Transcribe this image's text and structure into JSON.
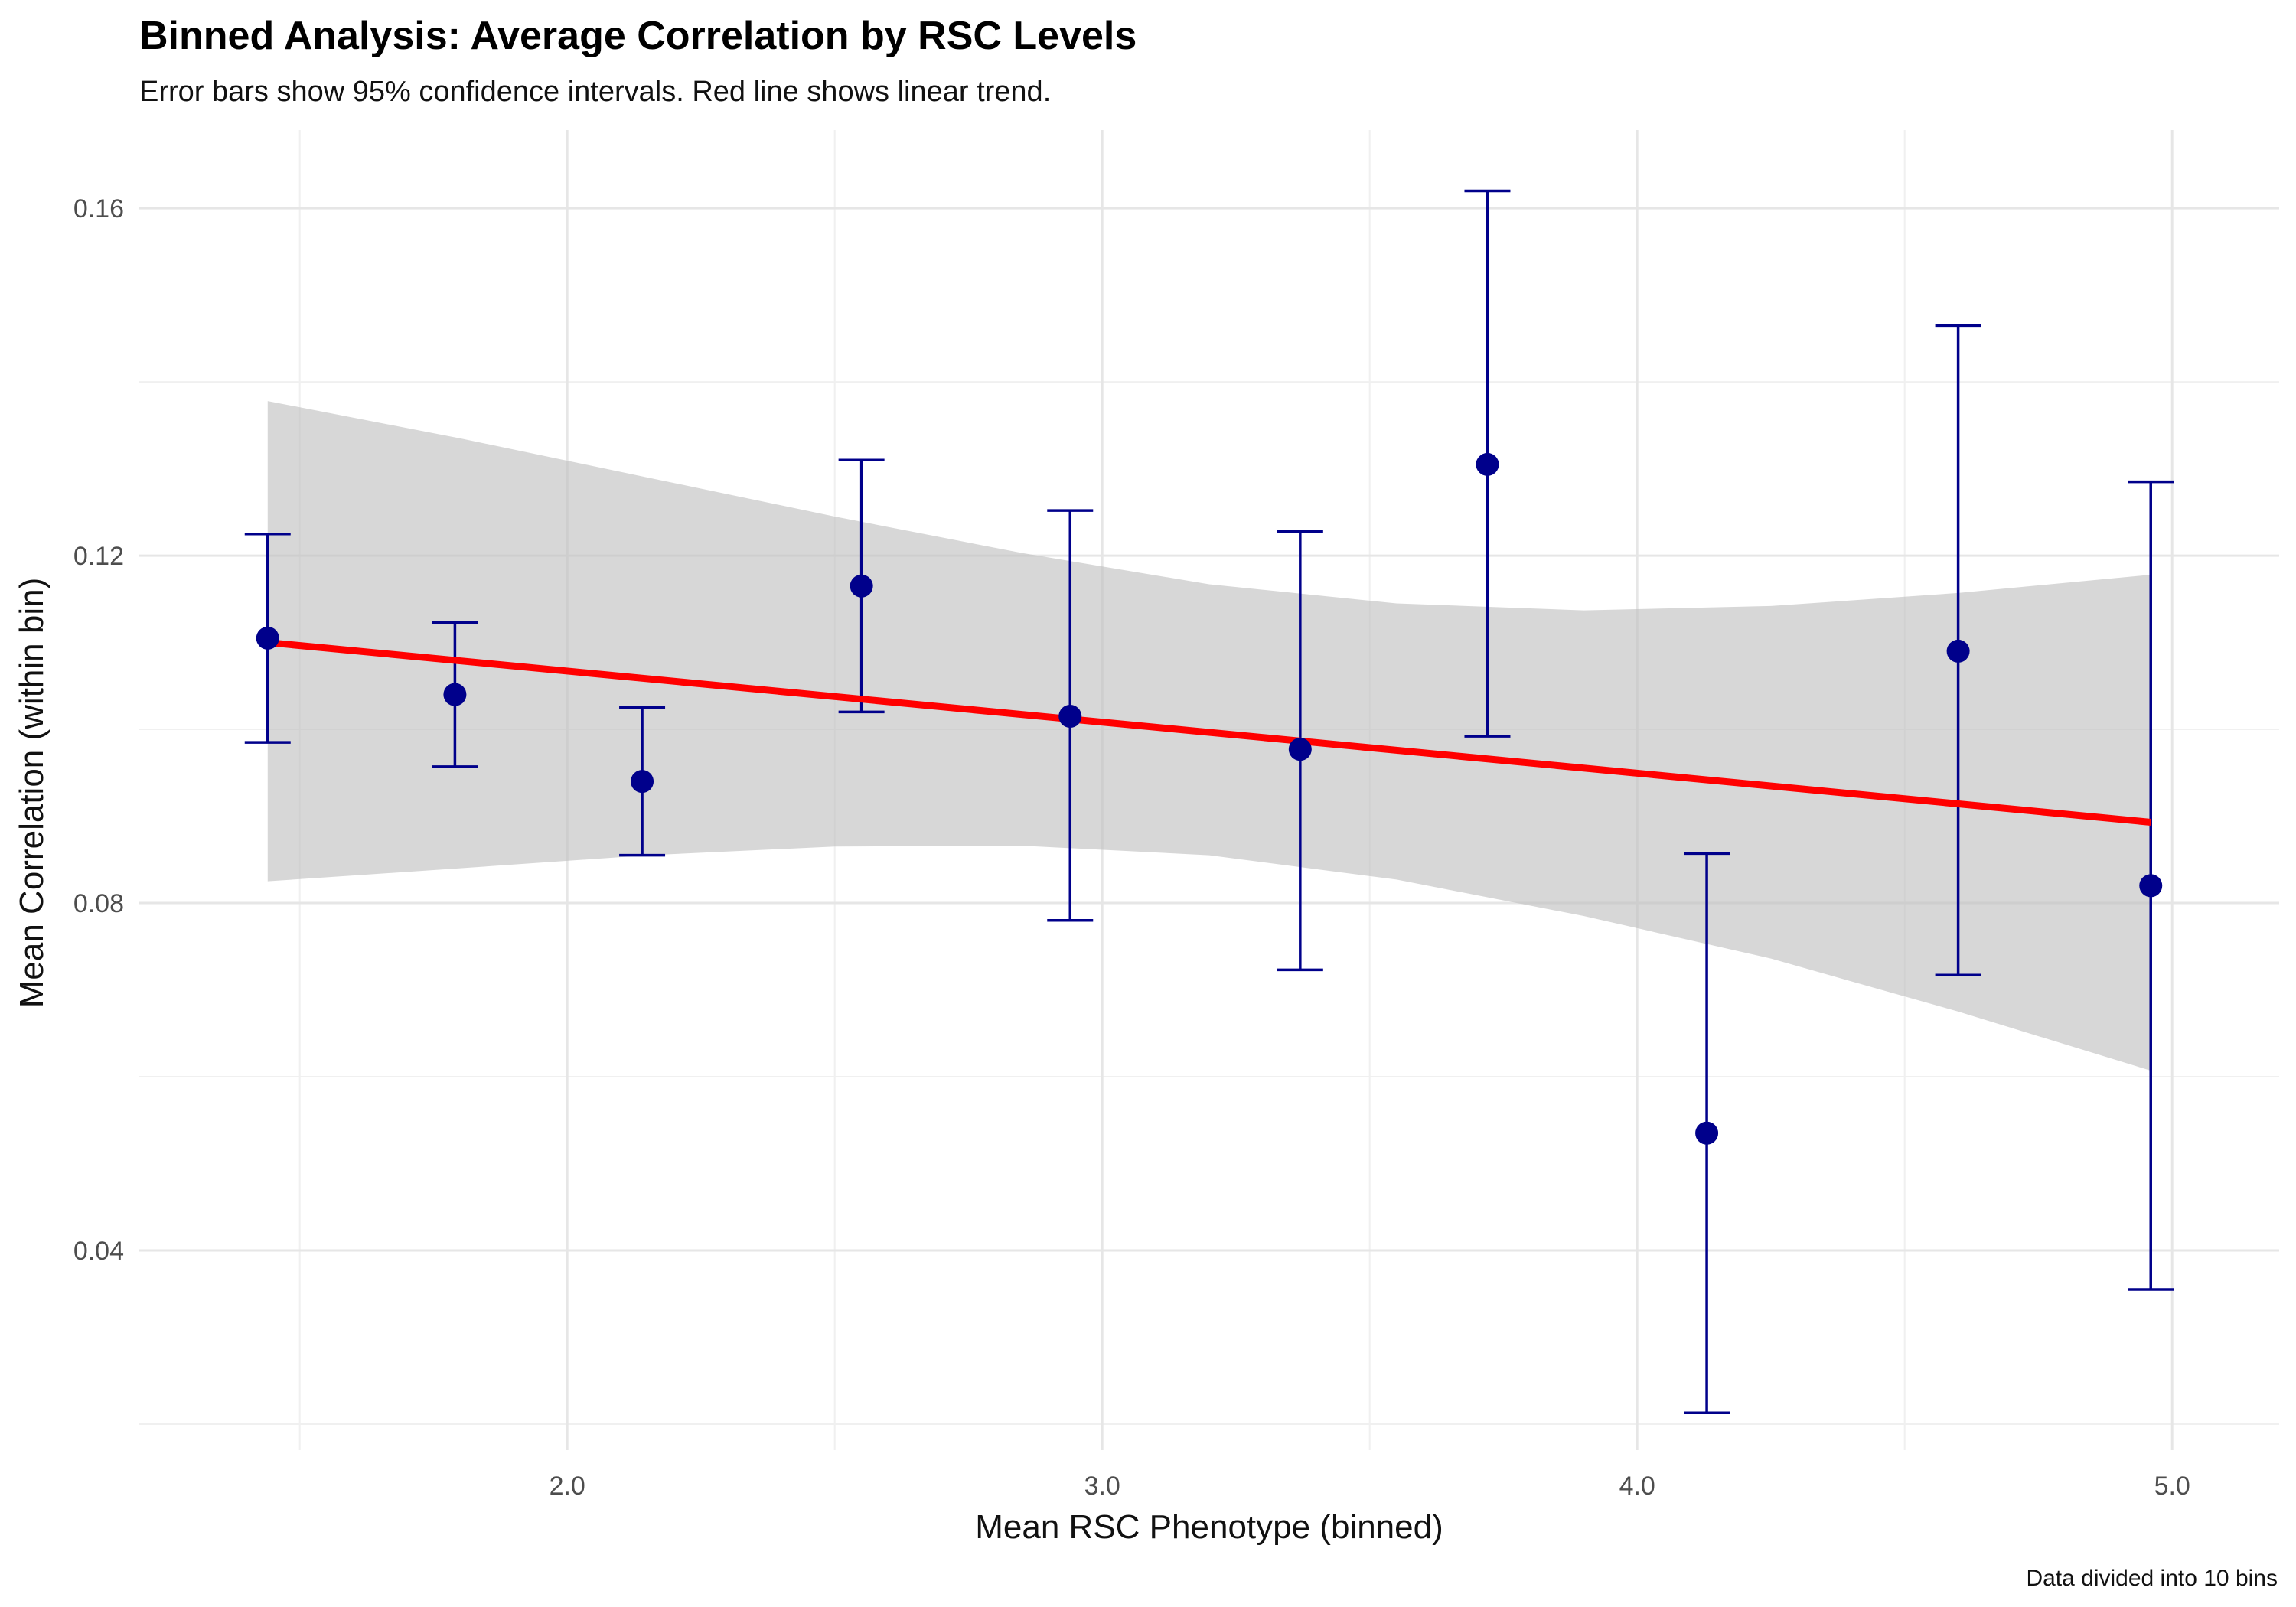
{
  "chart_data": {
    "type": "scatter",
    "title": "Binned Analysis: Average Correlation by RSC Levels",
    "subtitle": "Error bars show 95% confidence intervals. Red line shows linear trend.",
    "xlabel": "Mean RSC Phenotype (binned)",
    "ylabel": "Mean Correlation (within bin)",
    "caption": "Data divided into 10 bins",
    "xlim": [
      1.2,
      5.2
    ],
    "ylim": [
      0.017,
      0.169
    ],
    "x_ticks": [
      2.0,
      3.0,
      4.0,
      5.0
    ],
    "x_tick_labels": [
      "2.0",
      "3.0",
      "4.0",
      "5.0"
    ],
    "y_ticks": [
      0.04,
      0.08,
      0.12,
      0.16
    ],
    "y_tick_labels": [
      "0.04",
      "0.08",
      "0.12",
      "0.16"
    ],
    "grid": true,
    "colors": {
      "points": "#00008B",
      "error_bars": "#00008B",
      "trend_line": "#FF0000",
      "confidence_band": "#BEBEBE"
    },
    "series": [
      {
        "values": [
          {
            "x": 1.44,
            "y": 0.1105,
            "ci_low": 0.0985,
            "ci_high": 0.1225
          },
          {
            "x": 1.79,
            "y": 0.104,
            "ci_low": 0.0957,
            "ci_high": 0.1123
          },
          {
            "x": 2.14,
            "y": 0.094,
            "ci_low": 0.0855,
            "ci_high": 0.1025
          },
          {
            "x": 2.55,
            "y": 0.1165,
            "ci_low": 0.102,
            "ci_high": 0.131
          },
          {
            "x": 2.94,
            "y": 0.1015,
            "ci_low": 0.078,
            "ci_high": 0.1252
          },
          {
            "x": 3.37,
            "y": 0.0977,
            "ci_low": 0.0723,
            "ci_high": 0.1228
          },
          {
            "x": 3.72,
            "y": 0.1305,
            "ci_low": 0.0992,
            "ci_high": 0.162
          },
          {
            "x": 4.13,
            "y": 0.0535,
            "ci_low": 0.0213,
            "ci_high": 0.0857
          },
          {
            "x": 4.6,
            "y": 0.109,
            "ci_low": 0.0717,
            "ci_high": 0.1465
          },
          {
            "x": 4.96,
            "y": 0.082,
            "ci_low": 0.0355,
            "ci_high": 0.1285
          }
        ]
      }
    ],
    "trend": {
      "type": "linear",
      "x_range": [
        1.44,
        4.96
      ],
      "y_start": 0.11,
      "y_end": 0.0893,
      "confidence_band": [
        {
          "x": 1.44,
          "lower": 0.0825,
          "upper": 0.1378
        },
        {
          "x": 1.8,
          "lower": 0.084,
          "upper": 0.1335
        },
        {
          "x": 2.15,
          "lower": 0.0855,
          "upper": 0.129
        },
        {
          "x": 2.5,
          "lower": 0.0865,
          "upper": 0.1245
        },
        {
          "x": 2.85,
          "lower": 0.0866,
          "upper": 0.1203
        },
        {
          "x": 3.2,
          "lower": 0.0855,
          "upper": 0.1167
        },
        {
          "x": 3.55,
          "lower": 0.0827,
          "upper": 0.1145
        },
        {
          "x": 3.9,
          "lower": 0.0785,
          "upper": 0.1137
        },
        {
          "x": 4.25,
          "lower": 0.0736,
          "upper": 0.1142
        },
        {
          "x": 4.6,
          "lower": 0.0675,
          "upper": 0.1157
        },
        {
          "x": 4.96,
          "lower": 0.0607,
          "upper": 0.1178
        }
      ]
    }
  }
}
